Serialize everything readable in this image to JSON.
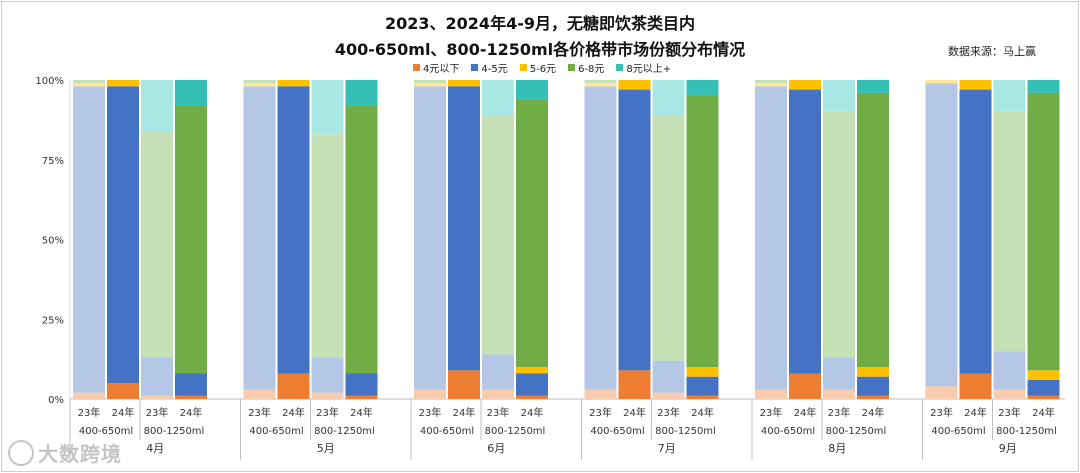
{
  "title_line1": "2023、2024年4-9月，无糖即饮茶类目内",
  "title_line2": "400-650ml、800-1250ml各价格带市场份额分布情况",
  "source": "数据来源：马上赢",
  "watermark": "大数跨境",
  "colors": {
    "4元以下": [
      "#f8cbad",
      "#ed7d31"
    ],
    "4-5元": [
      "#b4c7e7",
      "#4472c4"
    ],
    "5-6元": [
      "#ffe699",
      "#ffc000"
    ],
    "6-8元": [
      "#c5e0b4",
      "#70ad47"
    ],
    "8元以上+": [
      "#a9e7e5",
      "#35bfb7"
    ]
  },
  "chart_data": {
    "type": "stacked-bar-100",
    "yticks": [
      "0%",
      "25%",
      "50%",
      "75%",
      "100%"
    ],
    "ylim": [
      0,
      100
    ],
    "legend": [
      "4元以下",
      "4-5元",
      "5-6元",
      "6-8元",
      "8元以上+"
    ],
    "size_groups": [
      "400-650ml",
      "800-1250ml"
    ],
    "year_labels": [
      "23年",
      "24年",
      "23年",
      "24年"
    ],
    "months": [
      {
        "label": "4月",
        "bars": [
          {
            "year": "23年",
            "size": "400-650ml",
            "values": [
              2,
              96,
              1,
              1,
              0
            ]
          },
          {
            "year": "24年",
            "size": "400-650ml",
            "values": [
              5,
              93,
              2,
              0,
              0
            ]
          },
          {
            "year": "23年",
            "size": "800-1250ml",
            "values": [
              1,
              12,
              0,
              71,
              16
            ]
          },
          {
            "year": "24年",
            "size": "800-1250ml",
            "values": [
              1,
              7,
              0,
              84,
              8
            ]
          }
        ]
      },
      {
        "label": "5月",
        "bars": [
          {
            "year": "23年",
            "size": "400-650ml",
            "values": [
              3,
              95,
              1,
              1,
              0
            ]
          },
          {
            "year": "24年",
            "size": "400-650ml",
            "values": [
              8,
              90,
              2,
              0,
              0
            ]
          },
          {
            "year": "23年",
            "size": "800-1250ml",
            "values": [
              2,
              11,
              0,
              70,
              17
            ]
          },
          {
            "year": "24年",
            "size": "800-1250ml",
            "values": [
              1,
              7,
              0,
              84,
              8
            ]
          }
        ]
      },
      {
        "label": "6月",
        "bars": [
          {
            "year": "23年",
            "size": "400-650ml",
            "values": [
              3,
              95,
              1,
              1,
              0
            ]
          },
          {
            "year": "24年",
            "size": "400-650ml",
            "values": [
              9,
              89,
              2,
              0,
              0
            ]
          },
          {
            "year": "23年",
            "size": "800-1250ml",
            "values": [
              3,
              11,
              0,
              75,
              11
            ]
          },
          {
            "year": "24年",
            "size": "800-1250ml",
            "values": [
              1,
              7,
              2,
              84,
              6
            ]
          }
        ]
      },
      {
        "label": "7月",
        "bars": [
          {
            "year": "23年",
            "size": "400-650ml",
            "values": [
              3,
              95,
              1,
              1,
              0
            ]
          },
          {
            "year": "24年",
            "size": "400-650ml",
            "values": [
              9,
              88,
              3,
              0,
              0
            ]
          },
          {
            "year": "23年",
            "size": "800-1250ml",
            "values": [
              2,
              10,
              0,
              77,
              11
            ]
          },
          {
            "year": "24年",
            "size": "800-1250ml",
            "values": [
              1,
              6,
              3,
              85,
              5
            ]
          }
        ]
      },
      {
        "label": "8月",
        "bars": [
          {
            "year": "23年",
            "size": "400-650ml",
            "values": [
              3,
              95,
              1,
              1,
              0
            ]
          },
          {
            "year": "24年",
            "size": "400-650ml",
            "values": [
              8,
              89,
              3,
              0,
              0
            ]
          },
          {
            "year": "23年",
            "size": "800-1250ml",
            "values": [
              3,
              10,
              0,
              77,
              10
            ]
          },
          {
            "year": "24年",
            "size": "800-1250ml",
            "values": [
              1,
              6,
              3,
              86,
              4
            ]
          }
        ]
      },
      {
        "label": "9月",
        "bars": [
          {
            "year": "23年",
            "size": "400-650ml",
            "values": [
              4,
              95,
              1,
              0,
              0
            ]
          },
          {
            "year": "24年",
            "size": "400-650ml",
            "values": [
              8,
              89,
              3,
              0,
              0
            ]
          },
          {
            "year": "23年",
            "size": "800-1250ml",
            "values": [
              3,
              12,
              0,
              75,
              10
            ]
          },
          {
            "year": "24年",
            "size": "800-1250ml",
            "values": [
              1,
              5,
              3,
              87,
              4
            ]
          }
        ]
      }
    ]
  }
}
